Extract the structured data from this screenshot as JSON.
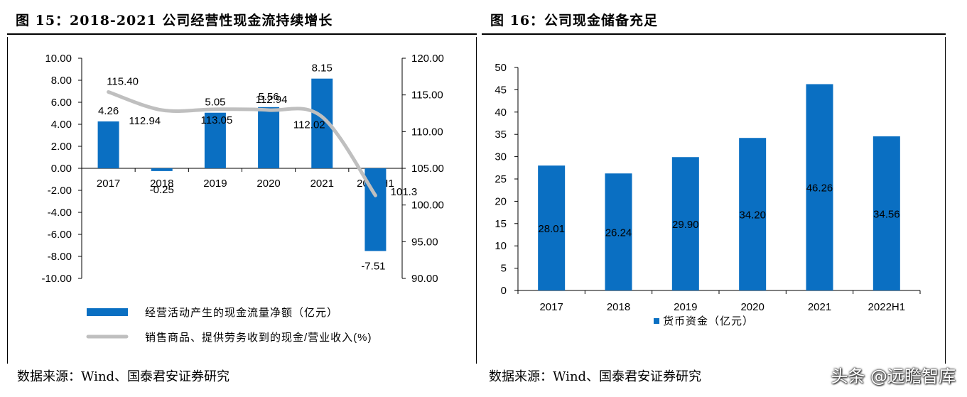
{
  "left_title": "图 15：2018-2021 公司经营性现金流持续增长",
  "right_title": "图 16：公司现金储备充足",
  "left_source": "数据来源：Wind、国泰君安证券研究",
  "right_source": "数据来源：Wind、国泰君安证券研究",
  "watermark": "头条 @远瞻智库",
  "chart_data": [
    {
      "type": "bar+line",
      "categories": [
        "2017",
        "2018",
        "2019",
        "2020",
        "2021",
        "2022H1"
      ],
      "series": [
        {
          "name": "经营活动产生的现金流量净额（亿元）",
          "type": "bar",
          "axis": "left",
          "values": [
            4.26,
            -0.25,
            5.05,
            5.56,
            8.15,
            -7.51
          ],
          "labels": [
            "4.26",
            "-0.25",
            "5.05",
            "5.56",
            "8.15",
            "-7.51"
          ],
          "color": "#0a6fc2"
        },
        {
          "name": "销售商品、提供劳务收到的现金/营业收入(%)",
          "type": "line",
          "axis": "right",
          "values": [
            115.4,
            112.94,
            113.05,
            112.94,
            112.02,
            101.3
          ],
          "labels": [
            "115.40",
            "112.94",
            "113.05",
            "112.94",
            "112.02",
            "101.3"
          ],
          "color": "#bfbfbf"
        }
      ],
      "y_left": {
        "min": -10,
        "max": 10,
        "step": 2,
        "ticks": [
          "10.00",
          "8.00",
          "6.00",
          "4.00",
          "2.00",
          "0.00",
          "-2.00",
          "-4.00",
          "-6.00",
          "-8.00",
          "-10.00"
        ]
      },
      "y_right": {
        "min": 90,
        "max": 120,
        "step": 5,
        "ticks": [
          "120.00",
          "115.00",
          "110.00",
          "105.00",
          "100.00",
          "95.00",
          "90.00"
        ]
      },
      "legend_position": "bottom"
    },
    {
      "type": "bar",
      "categories": [
        "2017",
        "2018",
        "2019",
        "2020",
        "2021",
        "2022H1"
      ],
      "series": [
        {
          "name": "货币资金（亿元）",
          "values": [
            28.01,
            26.24,
            29.9,
            34.2,
            46.26,
            34.56
          ],
          "labels": [
            "28.01",
            "26.24",
            "29.90",
            "34.20",
            "46.26",
            "34.56"
          ],
          "color": "#0a6fc2"
        }
      ],
      "ylim": [
        0,
        50
      ],
      "y_ticks": [
        "50",
        "45",
        "40",
        "35",
        "30",
        "25",
        "20",
        "15",
        "10",
        "5",
        "0"
      ],
      "legend_position": "bottom"
    }
  ]
}
